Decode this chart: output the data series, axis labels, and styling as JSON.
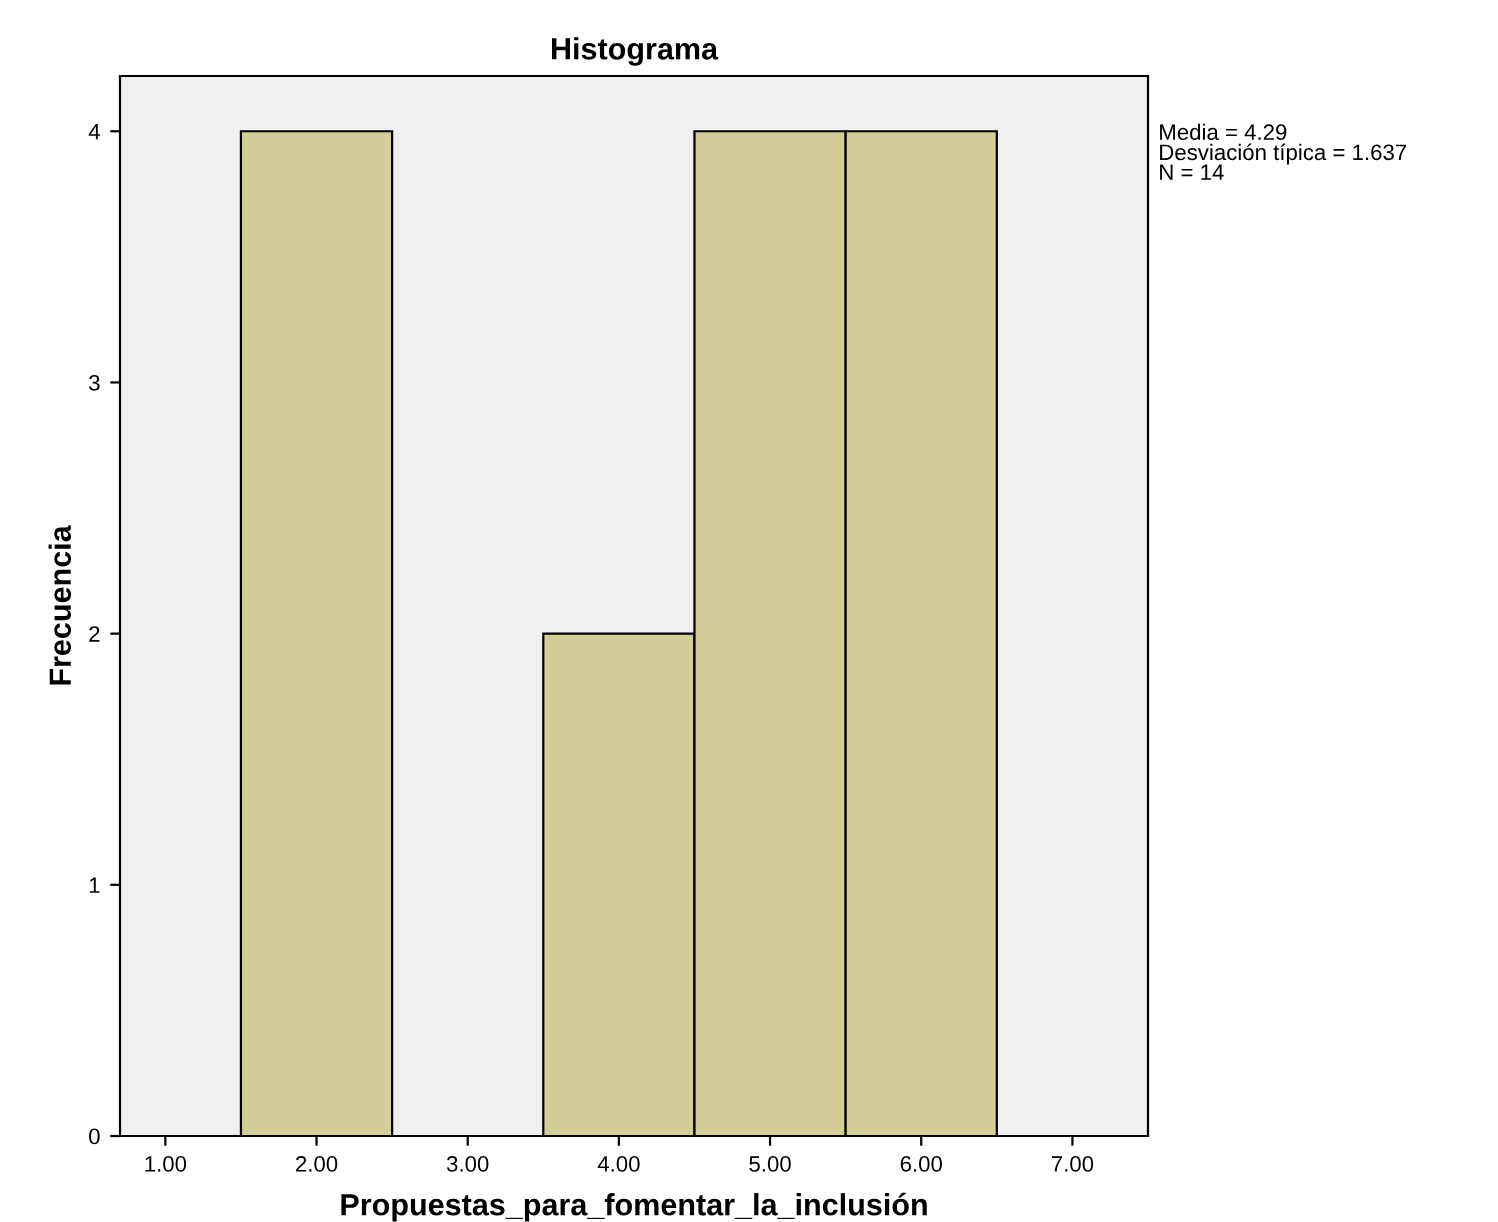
{
  "chart_data": {
    "type": "histogram",
    "title": "Histograma",
    "xlabel": "Propuestas_para_fomentar_la_inclusión",
    "ylabel": "Frecuencia",
    "bins": [
      1.5,
      2.5,
      3.5,
      4.5,
      5.5,
      6.5
    ],
    "values": [
      4,
      0,
      2,
      4,
      4
    ],
    "color": "#d3ce98",
    "xlim": [
      0.7,
      7.5
    ],
    "xticks": [
      {
        "value": 1,
        "label": "1.00"
      },
      {
        "value": 2,
        "label": "2.00"
      },
      {
        "value": 3,
        "label": "3.00"
      },
      {
        "value": 4,
        "label": "4.00"
      },
      {
        "value": 5,
        "label": "5.00"
      },
      {
        "value": 6,
        "label": "6.00"
      },
      {
        "value": 7,
        "label": "7.00"
      }
    ],
    "ylim": [
      0,
      4.22
    ],
    "yticks": [
      0,
      1,
      2,
      3,
      4
    ],
    "grid": false,
    "annotations": [
      "Media = 4.29",
      "Desviación típica = 1.637",
      "N = 14"
    ]
  }
}
